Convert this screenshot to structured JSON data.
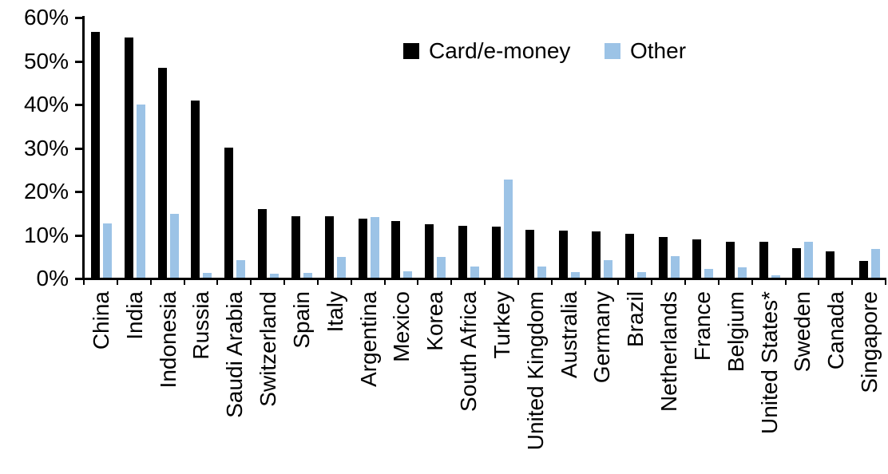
{
  "chart_data": {
    "type": "bar",
    "title": "",
    "xlabel": "",
    "ylabel": "",
    "ylim": [
      0,
      60
    ],
    "y_ticks": [
      "0%",
      "10%",
      "20%",
      "30%",
      "40%",
      "50%",
      "60%"
    ],
    "grid": false,
    "legend_position": "top-center",
    "categories": [
      "China",
      "India",
      "Indonesia",
      "Russia",
      "Saudi Arabia",
      "Switzerland",
      "Spain",
      "Italy",
      "Argentina",
      "Mexico",
      "Korea",
      "South Africa",
      "Turkey",
      "United Kingdom",
      "Australia",
      "Germany",
      "Brazil",
      "Netherlands",
      "France",
      "Belgium",
      "United States*",
      "Sweden",
      "Canada",
      "Singapore"
    ],
    "series": [
      {
        "name": "Card/e-money",
        "color": "#000000",
        "values": [
          56.5,
          55.2,
          48.3,
          40.7,
          29.9,
          15.7,
          14.2,
          14.1,
          13.5,
          13.1,
          12.3,
          11.9,
          11.8,
          11.1,
          10.9,
          10.7,
          10.0,
          9.3,
          8.8,
          8.3,
          8.2,
          6.7,
          6.0,
          3.9
        ]
      },
      {
        "name": "Other",
        "color": "#9CC3E6",
        "values": [
          12.4,
          39.9,
          14.6,
          1.1,
          4.0,
          0.9,
          1.1,
          4.8,
          14.0,
          1.4,
          4.7,
          2.5,
          22.5,
          2.5,
          1.2,
          4.1,
          1.3,
          5.0,
          2.1,
          2.4,
          0.5,
          8.2,
          0,
          6.6
        ]
      }
    ]
  }
}
